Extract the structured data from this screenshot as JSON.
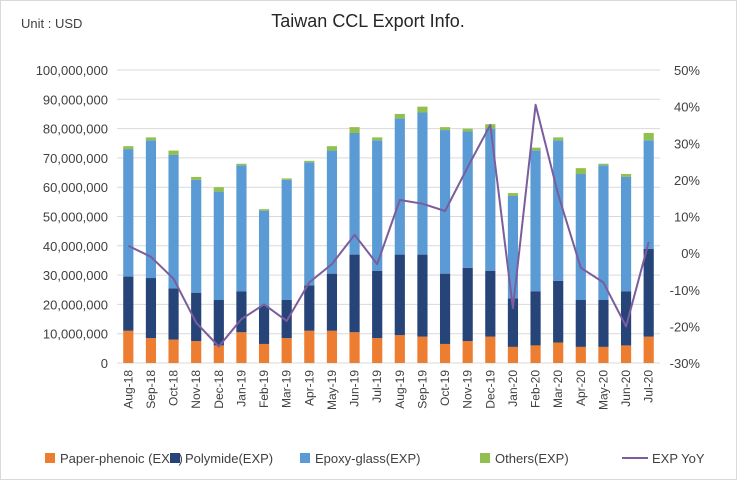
{
  "chart_data": {
    "type": "bar",
    "stacked": true,
    "title": "Taiwan CCL Export Info.",
    "unit_label": "Unit : USD",
    "categories": [
      "Aug-18",
      "Sep-18",
      "Oct-18",
      "Nov-18",
      "Dec-18",
      "Jan-19",
      "Feb-19",
      "Mar-19",
      "Apr-19",
      "May-19",
      "Jun-19",
      "Jul-19",
      "Aug-19",
      "Sep-19",
      "Oct-19",
      "Nov-19",
      "Dec-19",
      "Jan-20",
      "Feb-20",
      "Mar-20",
      "Apr-20",
      "May-20",
      "Jun-20",
      "Jul-20"
    ],
    "ylim": [
      0,
      100000000
    ],
    "y_ticks": [
      "0",
      "10,000,000",
      "20,000,000",
      "30,000,000",
      "40,000,000",
      "50,000,000",
      "60,000,000",
      "70,000,000",
      "80,000,000",
      "90,000,000",
      "100,000,000"
    ],
    "y2lim": [
      -0.3,
      0.5
    ],
    "y2_ticks": [
      "-30%",
      "-20%",
      "-10%",
      "0%",
      "10%",
      "20%",
      "30%",
      "40%",
      "50%"
    ],
    "grid": true,
    "legend_position": "bottom",
    "series": [
      {
        "name": "Paper-phenoic (EXP)",
        "type": "bar",
        "color": "#ed7d31",
        "values": [
          11000000,
          8500000,
          8000000,
          7500000,
          6000000,
          10500000,
          6500000,
          8500000,
          11000000,
          11000000,
          10500000,
          8500000,
          9500000,
          9000000,
          6500000,
          7500000,
          9000000,
          5500000,
          6000000,
          7000000,
          5500000,
          5500000,
          6000000,
          9000000
        ]
      },
      {
        "name": "Polymide(EXP)",
        "type": "bar",
        "color": "#264478",
        "values": [
          18500000,
          20500000,
          17500000,
          16500000,
          15500000,
          14000000,
          13000000,
          13000000,
          15500000,
          19500000,
          26500000,
          23000000,
          27500000,
          28000000,
          24000000,
          25000000,
          22500000,
          16500000,
          18500000,
          21000000,
          16000000,
          16000000,
          18500000,
          30000000
        ]
      },
      {
        "name": "Epoxy-glass(EXP)",
        "type": "bar",
        "color": "#5b9bd5",
        "values": [
          43500000,
          47000000,
          45500000,
          38500000,
          37000000,
          43000000,
          32500000,
          41000000,
          42000000,
          42000000,
          41500000,
          44500000,
          46500000,
          48500000,
          49000000,
          46500000,
          48500000,
          35000000,
          48000000,
          48000000,
          43000000,
          46000000,
          39000000,
          37000000
        ]
      },
      {
        "name": "Others(EXP)",
        "type": "bar",
        "color": "#92c050",
        "values": [
          1000000,
          1000000,
          1500000,
          1000000,
          1500000,
          500000,
          500000,
          500000,
          500000,
          1500000,
          2000000,
          1000000,
          1500000,
          2000000,
          1000000,
          1000000,
          1500000,
          1000000,
          1000000,
          1000000,
          2000000,
          500000,
          1000000,
          2500000
        ]
      },
      {
        "name": "EXP YoY",
        "type": "line",
        "axis": "secondary",
        "color": "#7b5d9e",
        "values": [
          0.02,
          -0.01,
          -0.07,
          -0.19,
          -0.255,
          -0.18,
          -0.14,
          -0.185,
          -0.08,
          -0.03,
          0.05,
          -0.03,
          0.145,
          0.135,
          0.115,
          0.235,
          0.35,
          -0.15,
          0.405,
          0.16,
          -0.04,
          -0.08,
          -0.2,
          0.03
        ]
      }
    ]
  }
}
